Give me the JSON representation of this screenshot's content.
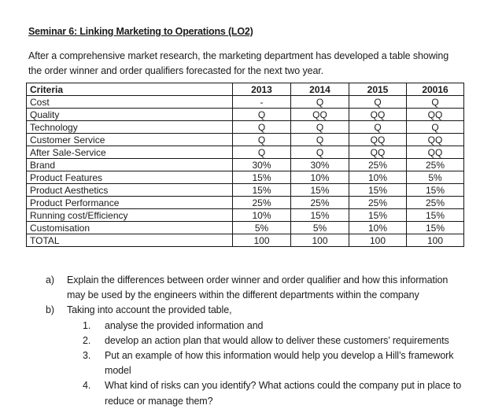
{
  "document": {
    "title": "Seminar 6: Linking Marketing to Operations (LO2)",
    "intro_line1": "After a comprehensive market research, the marketing department has developed a table showing",
    "intro_line2": "the order winner and order qualifiers forecasted for the next two year."
  },
  "table": {
    "header": [
      "Criteria",
      "2013",
      "2014",
      "2015",
      "20016"
    ],
    "rows": [
      {
        "criteria": "Cost",
        "values": [
          "-",
          "Q",
          "Q",
          "Q"
        ]
      },
      {
        "criteria": "Quality",
        "values": [
          "Q",
          "QQ",
          "QQ",
          "QQ"
        ]
      },
      {
        "criteria": "Technology",
        "values": [
          "Q",
          "Q",
          "Q",
          "Q"
        ]
      },
      {
        "criteria": "Customer Service",
        "values": [
          "Q",
          "Q",
          "QQ",
          "QQ"
        ]
      },
      {
        "criteria": "After Sale-Service",
        "values": [
          "Q",
          "Q",
          "QQ",
          "QQ"
        ]
      },
      {
        "criteria": "Brand",
        "values": [
          "30%",
          "30%",
          "25%",
          "25%"
        ]
      },
      {
        "criteria": "Product Features",
        "values": [
          "15%",
          "10%",
          "10%",
          "5%"
        ]
      },
      {
        "criteria": "Product Aesthetics",
        "values": [
          "15%",
          "15%",
          "15%",
          "15%"
        ]
      },
      {
        "criteria": "Product Performance",
        "values": [
          "25%",
          "25%",
          "25%",
          "25%"
        ]
      },
      {
        "criteria": "Running cost/Efficiency",
        "values": [
          "10%",
          "15%",
          "15%",
          "15%"
        ]
      },
      {
        "criteria": "Customisation",
        "values": [
          "5%",
          "5%",
          "10%",
          "15%"
        ]
      },
      {
        "criteria": "TOTAL",
        "values": [
          "100",
          "100",
          "100",
          "100"
        ]
      }
    ]
  },
  "questions": {
    "item_a": {
      "marker": "a)",
      "line1": "Explain the differences between order winner and order qualifier and how this information",
      "line2": "may be used by the engineers within the different departments within the company"
    },
    "item_b": {
      "marker": "b)",
      "text": "Taking into account the provided table,"
    },
    "item_1": {
      "marker": "1.",
      "text": "analyse the provided information and"
    },
    "item_2": {
      "marker": "2.",
      "text": "develop an action plan that would allow to deliver  these customers’ requirements"
    },
    "item_3": {
      "marker": "3.",
      "line1": "Put an example of how this information would help you develop a Hill’s framework",
      "line2": "model"
    },
    "item_4": {
      "marker": "4.",
      "line1": "What kind of risks can you identify? What actions could the company put in place to",
      "line2": "reduce or manage them?"
    }
  }
}
